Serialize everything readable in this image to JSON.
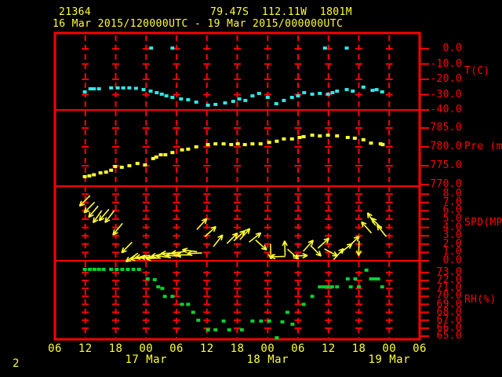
{
  "header": {
    "station_id": "21364",
    "location": "79.47S  112.11W  1801M",
    "time_range": "16 Mar 2015/120000UTC - 19 Mar 2015/000000UTC"
  },
  "footer": {
    "page_number": "2"
  },
  "colors": {
    "axis_red": "#ff0000",
    "text_yellow": "#ffff33",
    "temperature_cyan": "#33e6e6",
    "pressure_yellow": "#ffff33",
    "wind_yellow": "#ffff33",
    "rh_green": "#00d435",
    "background": "#000000"
  },
  "x_axis": {
    "hours_span": 72,
    "tick_interval_hours": 6,
    "tick_labels": [
      "06",
      "12",
      "18",
      "00",
      "06",
      "12",
      "18",
      "00",
      "06",
      "12",
      "18",
      "00",
      "06"
    ],
    "date_labels": [
      {
        "label": "17 Mar",
        "tick_index": 3
      },
      {
        "label": "18 Mar",
        "tick_index": 7
      },
      {
        "label": "19 Mar",
        "tick_index": 11
      }
    ]
  },
  "panels": [
    {
      "key": "temperature",
      "unit_label": "T(C)",
      "tick_values": [
        0,
        -10,
        -20,
        -30,
        -40
      ],
      "tick_labels": [
        "0.0",
        "-10.0",
        "-20.0",
        "-30.0",
        "-40.0"
      ]
    },
    {
      "key": "pressure",
      "unit_label": "Pre (mb)",
      "tick_values": [
        785,
        780,
        775,
        770
      ],
      "tick_labels": [
        "785.0",
        "780.0",
        "775.0",
        "770.0"
      ]
    },
    {
      "key": "wind",
      "unit_label": "SPD(MPS)",
      "tick_values": [
        8,
        7,
        6,
        5,
        4,
        3,
        2,
        1,
        0
      ],
      "tick_labels": [
        "8.0",
        "7.0",
        "6.0",
        "5.0",
        "4.0",
        "3.0",
        "2.0",
        "1.0",
        "0.0"
      ]
    },
    {
      "key": "rh",
      "unit_label": "RH(%)",
      "tick_values": [
        73,
        72,
        71,
        70,
        69,
        68,
        67,
        66,
        65
      ],
      "tick_labels": [
        "73.0",
        "72.0",
        "71.0",
        "70.0",
        "69.0",
        "68.0",
        "67.0",
        "66.0",
        "65.0"
      ]
    }
  ],
  "chart_data": {
    "type": "scatter",
    "title": "Station 21364 meteogram, 79.47S 112.11W 1801M, 16 Mar 2015 12UTC - 19 Mar 2015 00UTC",
    "x_unit": "hours since 16 Mar 2015 06UTC (axis ticks every 6 h)",
    "x_range": [
      0,
      72
    ],
    "grid": "red dashed 6-hourly columns with tick crosses",
    "legend_position": "right-axis unit labels",
    "series": [
      {
        "name": "temperature",
        "units": "C",
        "panel": "temperature",
        "marker": "square-dot",
        "points": [
          [
            5.9,
            -28.2
          ],
          [
            7.0,
            -26.2
          ],
          [
            7.7,
            -26.2
          ],
          [
            8.7,
            -26.2
          ],
          [
            11.1,
            -25.6
          ],
          [
            12.4,
            -25.6
          ],
          [
            13.5,
            -25.6
          ],
          [
            14.7,
            -25.6
          ],
          [
            16.0,
            -25.9
          ],
          [
            17.5,
            -26.7
          ],
          [
            18.9,
            -27.7
          ],
          [
            20.1,
            -28.7
          ],
          [
            21.1,
            -29.7
          ],
          [
            22.0,
            -30.8
          ],
          [
            23.2,
            -31.8
          ],
          [
            24.9,
            -32.8
          ],
          [
            26.3,
            -33.3
          ],
          [
            27.9,
            -34.9
          ],
          [
            30.2,
            -36.9
          ],
          [
            31.7,
            -36.4
          ],
          [
            33.6,
            -35.4
          ],
          [
            35.2,
            -34.4
          ],
          [
            36.4,
            -32.8
          ],
          [
            37.6,
            -33.8
          ],
          [
            39.0,
            -30.8
          ],
          [
            40.3,
            -29.2
          ],
          [
            42.0,
            -31.8
          ],
          [
            43.7,
            -35.9
          ],
          [
            45.2,
            -33.8
          ],
          [
            46.8,
            -31.8
          ],
          [
            48.0,
            -30.8
          ],
          [
            49.2,
            -28.7
          ],
          [
            50.8,
            -29.7
          ],
          [
            52.3,
            -29.2
          ],
          [
            53.9,
            -29.7
          ],
          [
            54.8,
            -28.7
          ],
          [
            55.7,
            -27.7
          ],
          [
            57.6,
            -26.7
          ],
          [
            58.8,
            -27.7
          ],
          [
            60.9,
            -25.1
          ],
          [
            62.7,
            -27.2
          ],
          [
            63.5,
            -26.7
          ],
          [
            64.6,
            -28.2
          ]
        ]
      },
      {
        "name": "temperature_outliers",
        "units": "C",
        "panel": "temperature",
        "marker": "square-dot",
        "points": [
          [
            19.0,
            0.4
          ],
          [
            23.2,
            0.4
          ],
          [
            53.3,
            0.4
          ],
          [
            57.6,
            0.4
          ]
        ]
      },
      {
        "name": "pressure",
        "units": "mb",
        "panel": "pressure",
        "marker": "square-dot",
        "points": [
          [
            5.9,
            772.1
          ],
          [
            6.8,
            772.3
          ],
          [
            7.7,
            772.6
          ],
          [
            9.0,
            773.1
          ],
          [
            10.1,
            773.3
          ],
          [
            11.1,
            773.8
          ],
          [
            11.9,
            774.8
          ],
          [
            13.2,
            774.6
          ],
          [
            14.7,
            775.0
          ],
          [
            16.3,
            775.6
          ],
          [
            17.8,
            775.2
          ],
          [
            19.4,
            776.9
          ],
          [
            20.0,
            777.3
          ],
          [
            20.9,
            777.9
          ],
          [
            21.8,
            777.9
          ],
          [
            23.2,
            778.5
          ],
          [
            25.1,
            779.2
          ],
          [
            26.3,
            779.4
          ],
          [
            27.9,
            780.0
          ],
          [
            30.2,
            780.6
          ],
          [
            31.7,
            780.8
          ],
          [
            33.3,
            780.8
          ],
          [
            34.8,
            780.6
          ],
          [
            36.1,
            780.8
          ],
          [
            37.5,
            780.6
          ],
          [
            39.0,
            780.8
          ],
          [
            40.6,
            780.8
          ],
          [
            42.3,
            781.2
          ],
          [
            43.8,
            781.5
          ],
          [
            45.2,
            782.1
          ],
          [
            46.8,
            782.1
          ],
          [
            48.3,
            782.5
          ],
          [
            49.1,
            782.7
          ],
          [
            50.8,
            783.1
          ],
          [
            52.3,
            782.9
          ],
          [
            53.9,
            783.1
          ],
          [
            55.7,
            782.9
          ],
          [
            57.8,
            782.5
          ],
          [
            59.2,
            782.3
          ],
          [
            60.9,
            781.9
          ],
          [
            62.4,
            781.0
          ],
          [
            64.3,
            780.8
          ],
          [
            64.7,
            780.6
          ]
        ]
      },
      {
        "name": "wind_speed_and_direction",
        "units": "MPS",
        "panel": "wind",
        "marker": "arrow",
        "format": "[hours, speed_mps, screen_direction_deg (0=right,90=up)]",
        "points": [
          [
            5.9,
            7.2,
            225
          ],
          [
            6.8,
            6.4,
            225
          ],
          [
            7.6,
            5.9,
            230
          ],
          [
            8.4,
            5.3,
            235
          ],
          [
            9.7,
            5.5,
            230
          ],
          [
            10.8,
            5.3,
            232
          ],
          [
            12.4,
            3.8,
            230
          ],
          [
            14.2,
            1.6,
            225
          ],
          [
            15.2,
            0.4,
            215
          ],
          [
            16.3,
            0.3,
            185
          ],
          [
            17.3,
            0.5,
            190
          ],
          [
            18.3,
            0.4,
            178
          ],
          [
            19.4,
            0.3,
            182
          ],
          [
            20.4,
            0.7,
            192
          ],
          [
            21.4,
            0.5,
            172
          ],
          [
            22.4,
            0.9,
            182
          ],
          [
            23.4,
            0.6,
            176
          ],
          [
            24.4,
            1.0,
            188
          ],
          [
            25.4,
            0.7,
            180
          ],
          [
            26.6,
            1.2,
            172
          ],
          [
            27.6,
            0.9,
            182
          ],
          [
            29.0,
            4.4,
            48
          ],
          [
            30.7,
            3.5,
            42
          ],
          [
            32.2,
            2.4,
            52
          ],
          [
            35.0,
            2.7,
            45
          ],
          [
            36.4,
            3.0,
            42
          ],
          [
            37.5,
            3.2,
            48
          ],
          [
            39.5,
            2.8,
            38
          ],
          [
            40.7,
            1.9,
            318
          ],
          [
            42.6,
            1.1,
            272
          ],
          [
            44.0,
            0.5,
            182
          ],
          [
            45.4,
            1.5,
            92
          ],
          [
            47.0,
            0.8,
            318
          ],
          [
            48.4,
            0.6,
            2
          ],
          [
            50.0,
            1.8,
            48
          ],
          [
            51.5,
            1.2,
            315
          ],
          [
            53.0,
            2.1,
            42
          ],
          [
            54.5,
            1.0,
            332
          ],
          [
            56.0,
            0.8,
            48
          ],
          [
            57.5,
            1.5,
            38
          ],
          [
            59.0,
            2.3,
            45
          ],
          [
            60.0,
            1.5,
            268
          ],
          [
            61.5,
            4.0,
            132
          ],
          [
            62.5,
            5.0,
            122
          ],
          [
            63.5,
            4.5,
            135
          ],
          [
            64.5,
            3.6,
            128
          ]
        ]
      },
      {
        "name": "relative_humidity",
        "units": "%",
        "panel": "rh",
        "marker": "square-dot",
        "points": [
          [
            5.9,
            73.4
          ],
          [
            6.9,
            73.4
          ],
          [
            7.8,
            73.4
          ],
          [
            8.7,
            73.4
          ],
          [
            9.6,
            73.4
          ],
          [
            11.1,
            73.4
          ],
          [
            12.2,
            73.4
          ],
          [
            13.3,
            73.4
          ],
          [
            14.4,
            73.4
          ],
          [
            15.5,
            73.4
          ],
          [
            16.6,
            73.4
          ],
          [
            18.3,
            72.2
          ],
          [
            19.7,
            72.1
          ],
          [
            20.4,
            71.2
          ],
          [
            21.2,
            71.0
          ],
          [
            21.7,
            70.0
          ],
          [
            23.2,
            70.0
          ],
          [
            25.1,
            69.0
          ],
          [
            26.3,
            69.0
          ],
          [
            27.3,
            68.0
          ],
          [
            28.3,
            67.0
          ],
          [
            30.2,
            65.8
          ],
          [
            31.7,
            65.8
          ],
          [
            33.3,
            66.9
          ],
          [
            34.4,
            65.8
          ],
          [
            36.9,
            65.8
          ],
          [
            39.0,
            66.9
          ],
          [
            40.7,
            66.9
          ],
          [
            42.3,
            66.9
          ],
          [
            43.8,
            64.8
          ],
          [
            44.9,
            66.8
          ],
          [
            45.9,
            68.0
          ],
          [
            46.9,
            66.5
          ],
          [
            49.1,
            69.0
          ],
          [
            50.8,
            70.0
          ],
          [
            52.3,
            71.2
          ],
          [
            53.1,
            71.2
          ],
          [
            53.9,
            71.2
          ],
          [
            54.7,
            71.2
          ],
          [
            55.7,
            71.2
          ],
          [
            57.8,
            72.2
          ],
          [
            58.4,
            71.2
          ],
          [
            59.3,
            72.2
          ],
          [
            60.0,
            71.2
          ],
          [
            61.5,
            73.3
          ],
          [
            62.4,
            72.2
          ],
          [
            63.1,
            72.2
          ],
          [
            63.8,
            72.2
          ],
          [
            64.6,
            71.2
          ]
        ]
      }
    ],
    "panel_value_ranges": {
      "temperature": [
        -40,
        0
      ],
      "pressure": [
        770,
        785
      ],
      "wind": [
        0,
        8
      ],
      "rh": [
        65,
        73
      ]
    }
  }
}
